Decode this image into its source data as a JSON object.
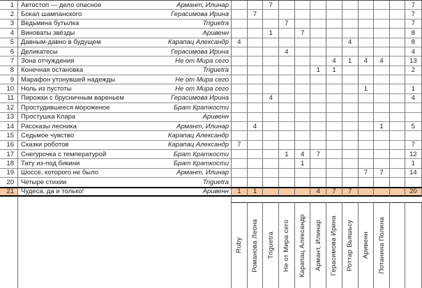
{
  "sheet": {
    "judges": [
      "Ruby",
      "Романова Леона",
      "Triguetra",
      "Не от Мира сего",
      "Карапац Александр",
      "Армант, Илинар",
      "Герасимова Ирина",
      "Роттар Вьяшьсу",
      "Аривенн",
      "Потанина Полина"
    ],
    "rows": [
      {
        "num": "1",
        "title": "Автостоп — дело опасное",
        "author": "Армант, Илинар",
        "votes": [
          "",
          "",
          "7",
          "",
          "",
          "",
          "",
          "",
          "",
          ""
        ],
        "total": "7"
      },
      {
        "num": "2",
        "title": "Бокал шампанского",
        "author": "Герасимова Ирина",
        "votes": [
          "",
          "7",
          "",
          "",
          "",
          "",
          "",
          "",
          "",
          ""
        ],
        "total": "7"
      },
      {
        "num": "3",
        "title": "Ведьмина бутылка",
        "author": "Triguetra",
        "votes": [
          "",
          "",
          "",
          "7",
          "",
          "",
          "",
          "",
          "",
          ""
        ],
        "total": "7"
      },
      {
        "num": "4",
        "title": "Виноваты звёзды",
        "author": "Аривенн",
        "votes": [
          "",
          "",
          "1",
          "",
          "7",
          "",
          "",
          "",
          "",
          ""
        ],
        "total": "8"
      },
      {
        "num": "5",
        "title": "Давным-давно в будущем",
        "author": "Карапац Александр",
        "votes": [
          "4",
          "",
          "",
          "",
          "",
          "",
          "",
          "4",
          "",
          ""
        ],
        "total": "8"
      },
      {
        "num": "6",
        "title": "Деликатесы",
        "author": "Герасимова Ирина",
        "votes": [
          "",
          "",
          "",
          "4",
          "",
          "",
          "",
          "",
          "",
          ""
        ],
        "total": "4"
      },
      {
        "num": "7",
        "title": "Зона отчуждения",
        "author": "Не от Мира сего",
        "votes": [
          "",
          "",
          "",
          "",
          "",
          "",
          "4",
          "1",
          "4",
          "4"
        ],
        "total": "13"
      },
      {
        "num": "8",
        "title": "Конечная остановка",
        "author": "Triguetra",
        "votes": [
          "",
          "",
          "",
          "",
          "",
          "1",
          "1",
          "",
          "",
          ""
        ],
        "total": "2"
      },
      {
        "num": "9",
        "title": "Марафон утонувшей надежды",
        "author": "Не от Мира сего",
        "votes": [
          "",
          "",
          "",
          "",
          "",
          "",
          "",
          "",
          "",
          ""
        ],
        "total": ""
      },
      {
        "num": "10",
        "title": "Ноль из пустоты",
        "author": "Не от Мира сего",
        "votes": [
          "",
          "",
          "",
          "",
          "",
          "",
          "",
          "",
          "1",
          ""
        ],
        "total": "1"
      },
      {
        "num": "11",
        "title": "Пирожки с брусничным вареньем",
        "author": "Герасимова Ирина",
        "votes": [
          "",
          "",
          "4",
          "",
          "",
          "",
          "",
          "",
          "",
          ""
        ],
        "total": "4"
      },
      {
        "num": "12",
        "title": "Простудившееся мороженое",
        "author": "Брат Краткости",
        "votes": [
          "",
          "",
          "",
          "",
          "",
          "",
          "",
          "",
          "",
          ""
        ],
        "total": ""
      },
      {
        "num": "13",
        "title": "Простушка Клара",
        "author": "Аривенн",
        "votes": [
          "",
          "",
          "",
          "",
          "",
          "",
          "",
          "",
          "",
          ""
        ],
        "total": ""
      },
      {
        "num": "14",
        "title": "Рассказы лесника",
        "author": "Армант, Илинар",
        "votes": [
          "",
          "4",
          "",
          "",
          "",
          "",
          "",
          "",
          "",
          "1"
        ],
        "total": "5"
      },
      {
        "num": "15",
        "title": "Седьмое чувство",
        "author": "Карапац Александр",
        "votes": [
          "",
          "",
          "",
          "",
          "",
          "",
          "",
          "",
          "",
          ""
        ],
        "total": ""
      },
      {
        "num": "16",
        "title": "Сказки роботов",
        "author": "Карапац Александр",
        "votes": [
          "7",
          "",
          "",
          "",
          "",
          "",
          "",
          "",
          "",
          ""
        ],
        "total": "7"
      },
      {
        "num": "17",
        "title": "Снегурочка с температурой",
        "author": "Брат Краткости",
        "votes": [
          "",
          "",
          "",
          "1",
          "4",
          "7",
          "",
          "",
          "",
          ""
        ],
        "total": "12"
      },
      {
        "num": "18",
        "title": "Тату из-под бикини",
        "author": "Брат Краткости",
        "votes": [
          "",
          "",
          "",
          "",
          "1",
          "",
          "",
          "",
          "",
          ""
        ],
        "total": "1"
      },
      {
        "num": "19",
        "title": "Шоссе, которого не было",
        "author": "Армант, Илинар",
        "votes": [
          "",
          "",
          "",
          "",
          "",
          "",
          "",
          "",
          "7",
          "7"
        ],
        "total": "14"
      },
      {
        "num": "20",
        "title": "Четыре стихии",
        "author": "Triguetra",
        "votes": [
          "",
          "",
          "",
          "",
          "",
          "",
          "",
          "",
          "",
          ""
        ],
        "total": ""
      },
      {
        "num": "21",
        "title": "Чудеса, да и только!",
        "author": "Аривенн",
        "votes": [
          "1",
          "1",
          "",
          "",
          "",
          "4",
          "7",
          "7",
          "",
          ""
        ],
        "total": "20"
      }
    ],
    "highlight": {
      "row_num": "21",
      "fill": "#F7C9A4"
    },
    "colors": {
      "grid_horizontal": "#8f8f8f",
      "grid_vertical": "#6f6f6f",
      "dark_border": "#000000"
    }
  }
}
